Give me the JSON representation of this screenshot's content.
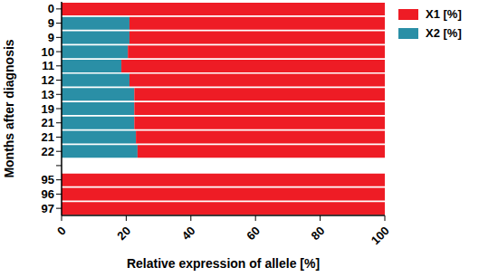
{
  "chart_data": {
    "type": "bar",
    "orientation": "horizontal",
    "stacked": true,
    "x_label": "Relative expression of allele [%]",
    "y_label": "Months after diagnosis",
    "categories": [
      "0",
      "9",
      "9",
      "10",
      "11",
      "12",
      "13",
      "19",
      "21",
      "21",
      "22",
      null,
      "95",
      "96",
      "97"
    ],
    "series": [
      {
        "name": "X1 [%]",
        "color": "#ee1c25",
        "values": [
          100,
          79,
          79,
          79.5,
          81.5,
          79,
          77.5,
          77.5,
          77.5,
          77,
          76.5,
          null,
          100,
          100,
          100
        ]
      },
      {
        "name": "X2 [%]",
        "color": "#2a8fa6",
        "values": [
          0,
          21,
          21,
          20.5,
          18.5,
          21,
          22.5,
          22.5,
          22.5,
          23,
          23.5,
          null,
          0,
          0,
          0
        ]
      }
    ],
    "xlim": [
      0,
      100
    ],
    "xticks": [
      0,
      20,
      40,
      60,
      80,
      100
    ],
    "legend": "right",
    "grid": false
  }
}
